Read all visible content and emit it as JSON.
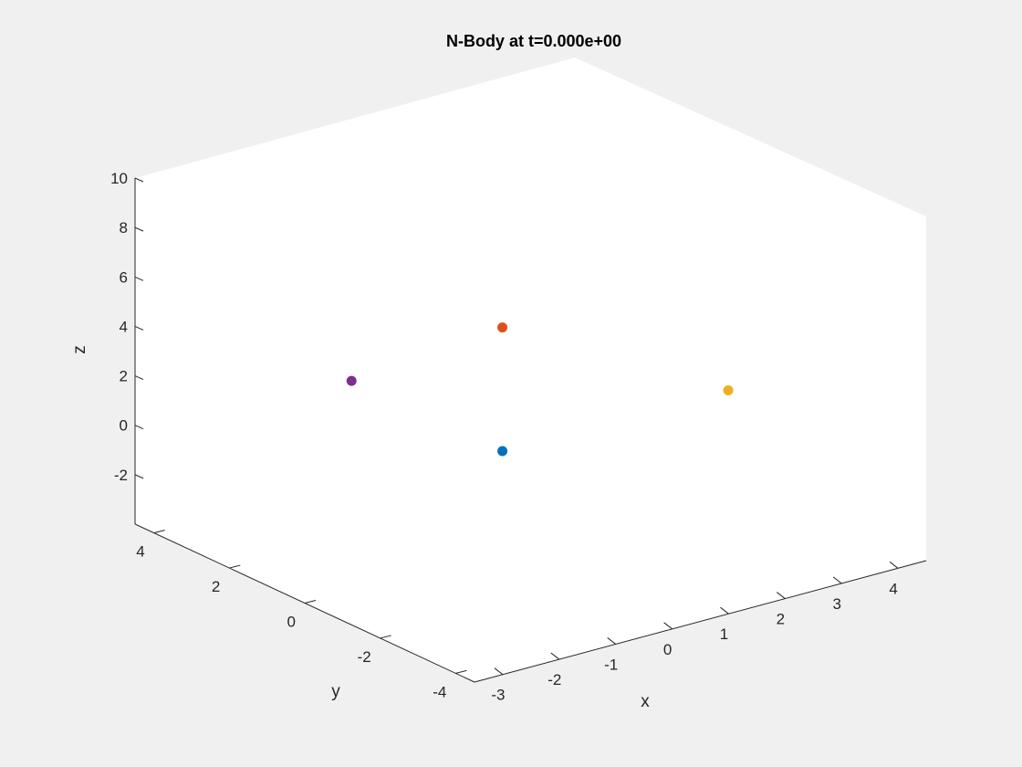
{
  "chart_data": {
    "type": "scatter",
    "title": "N-Body at t=0.000e+00",
    "xlabel": "x",
    "ylabel": "y",
    "zlabel": "z",
    "xlim": [
      -3.5,
      4.5
    ],
    "ylim": [
      -4.5,
      4.5
    ],
    "zlim": [
      -4,
      10
    ],
    "xticks": [
      -3,
      -2,
      -1,
      0,
      1,
      2,
      3,
      4
    ],
    "yticks": [
      -4,
      -2,
      0,
      2,
      4
    ],
    "zticks": [
      -2,
      0,
      2,
      4,
      6,
      8,
      10
    ],
    "grid": false,
    "background": "#f0f0f0",
    "axes_background": "#ffffff",
    "points": [
      {
        "x": 0.0,
        "y": 0.0,
        "z": 0.0,
        "color": "#0072bd"
      },
      {
        "x": 0.0,
        "y": 0.0,
        "z": 5.0,
        "color": "#d95319"
      },
      {
        "x": 4.0,
        "y": 0.0,
        "z": 0.0,
        "color": "#edb120"
      },
      {
        "x": 0.0,
        "y": 4.0,
        "z": 0.0,
        "color": "#7e2f8e"
      }
    ]
  }
}
